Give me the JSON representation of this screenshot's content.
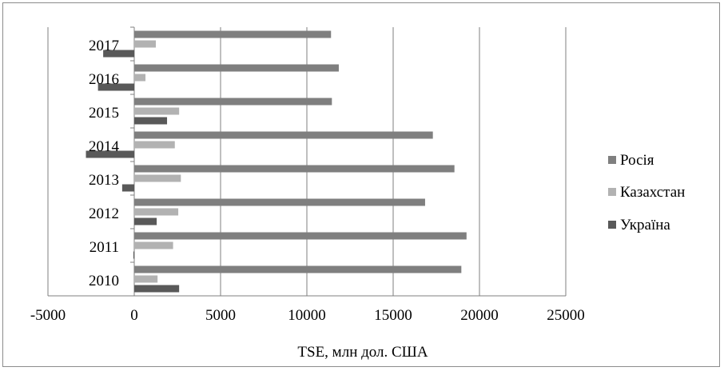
{
  "chart_data": {
    "type": "bar",
    "orientation": "horizontal",
    "title": "",
    "xlabel": "TSE, млн дол. США",
    "ylabel": "",
    "xlim": [
      -5000,
      25000
    ],
    "x_ticks": [
      -5000,
      0,
      5000,
      10000,
      15000,
      20000,
      25000
    ],
    "categories": [
      "2010",
      "2011",
      "2012",
      "2013",
      "2014",
      "2015",
      "2016",
      "2017"
    ],
    "series": [
      {
        "name": "Росія",
        "color": "#7f7f7f",
        "values": [
          18950,
          19250,
          16850,
          18550,
          17300,
          11450,
          11850,
          11400
        ]
      },
      {
        "name": "Казахстан",
        "color": "#b2b2b2",
        "values": [
          1350,
          2250,
          2550,
          2700,
          2350,
          2600,
          650,
          1250
        ]
      },
      {
        "name": "Україна",
        "color": "#595959",
        "values": [
          2600,
          -50,
          1300,
          -700,
          -2800,
          1900,
          -2100,
          -1800
        ]
      }
    ],
    "grid": true,
    "legend": "right"
  }
}
